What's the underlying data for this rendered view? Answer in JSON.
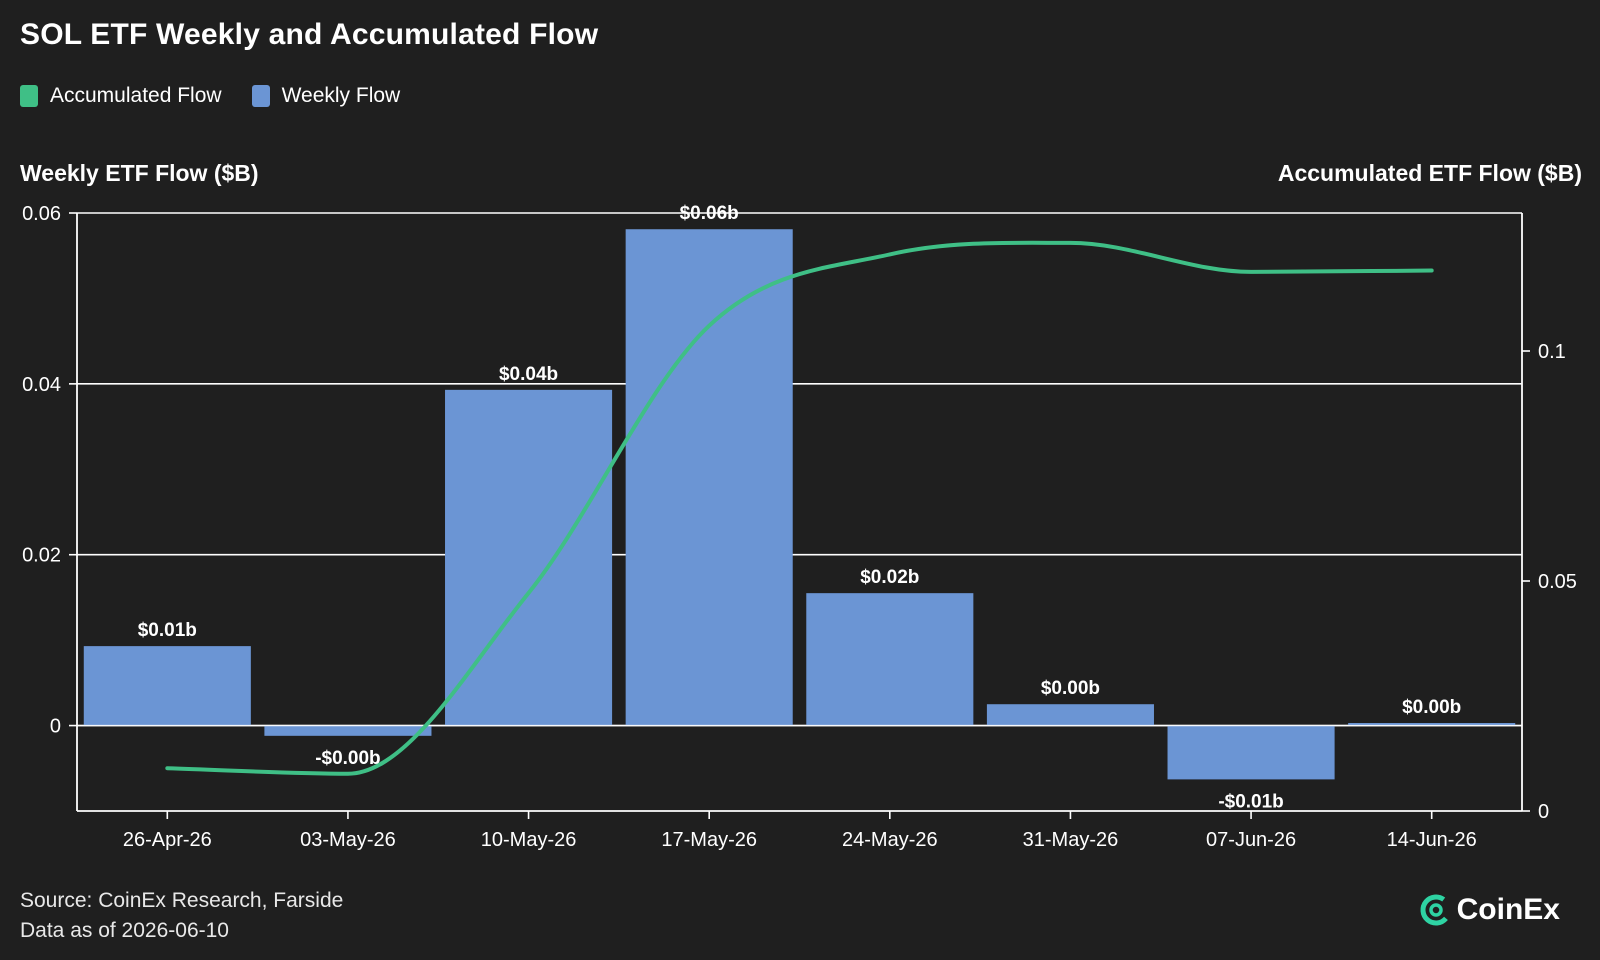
{
  "title": "SOL ETF Weekly and Accumulated Flow",
  "legend": [
    {
      "label": "Accumulated Flow",
      "color": "#3fbf86"
    },
    {
      "label": "Weekly Flow",
      "color": "#6b95d4"
    }
  ],
  "left_axis_title": "Weekly ETF Flow ($B)",
  "right_axis_title": "Accumulated ETF Flow ($B)",
  "footer": {
    "source": "Source: CoinEx Research, Farside",
    "date": "Data as of 2026-06-10"
  },
  "logo": {
    "text": "CoinEx",
    "icon": "coinex-logo-icon"
  },
  "chart_data": {
    "type": "bar+line",
    "categories": [
      "26-Apr-26",
      "03-May-26",
      "10-May-26",
      "17-May-26",
      "24-May-26",
      "31-May-26",
      "07-Jun-26",
      "14-Jun-26"
    ],
    "series": [
      {
        "name": "Weekly Flow",
        "type": "bar",
        "axis": "left",
        "color": "#6b95d4",
        "values": [
          0.0093,
          -0.0012,
          0.0393,
          0.0581,
          0.0155,
          0.0025,
          -0.0063,
          0.0003
        ],
        "labels": [
          "$0.01b",
          "-$0.00b",
          "$0.04b",
          "$0.06b",
          "$0.02b",
          "$0.00b",
          "-$0.01b",
          "$0.00b"
        ]
      },
      {
        "name": "Accumulated Flow",
        "type": "line",
        "axis": "right",
        "color": "#3fbf86",
        "values": [
          0.0093,
          0.0081,
          0.0474,
          0.1055,
          0.121,
          0.1235,
          0.1172,
          0.1175
        ]
      }
    ],
    "left_axis": {
      "range": [
        -0.01,
        0.06
      ],
      "ticks": [
        0,
        0.02,
        0.04,
        0.06
      ],
      "tick_labels": [
        "0",
        "0.02",
        "0.04",
        "0.06"
      ]
    },
    "right_axis": {
      "range": [
        0,
        0.13
      ],
      "ticks": [
        0,
        0.05,
        0.1
      ],
      "tick_labels": [
        "0",
        "0.05",
        "0.1"
      ]
    },
    "grid": true
  }
}
